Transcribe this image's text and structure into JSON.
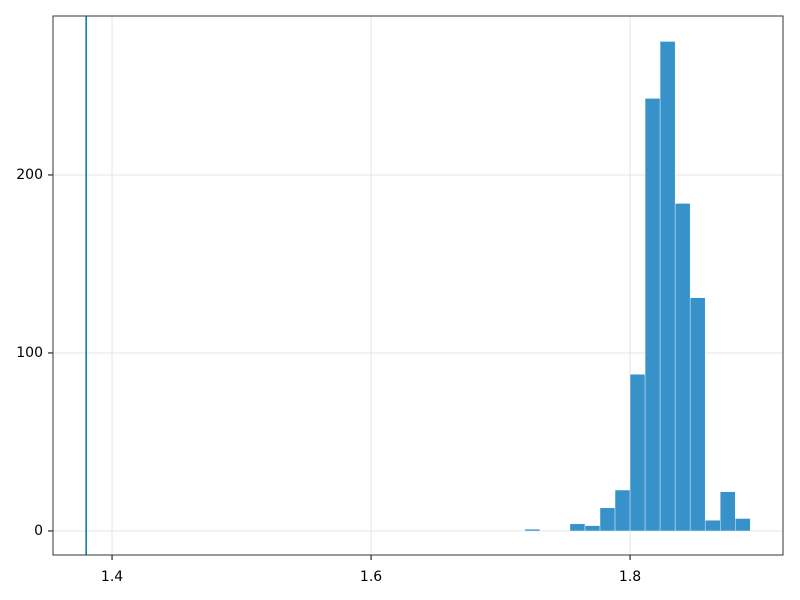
{
  "chart_data": {
    "type": "histogram",
    "bins": [
      1.7188,
      1.7304,
      1.742,
      1.7536,
      1.7652,
      1.7768,
      1.7884,
      1.8,
      1.8116,
      1.8232,
      1.8348,
      1.8464,
      1.858,
      1.8696,
      1.8812,
      1.8928
    ],
    "counts": [
      1,
      0,
      0,
      4,
      3,
      13,
      23,
      88,
      243,
      275,
      184,
      131,
      6,
      22,
      7
    ],
    "color": "#3792c9",
    "vline": 1.38,
    "vline_color": "#0072b2",
    "xlim": [
      1.3544,
      1.9181
    ],
    "ylim": [
      -13.5,
      289.3
    ],
    "xticks": [
      1.4,
      1.6,
      1.8
    ],
    "yticks": [
      0,
      100,
      200
    ],
    "grid": true
  }
}
